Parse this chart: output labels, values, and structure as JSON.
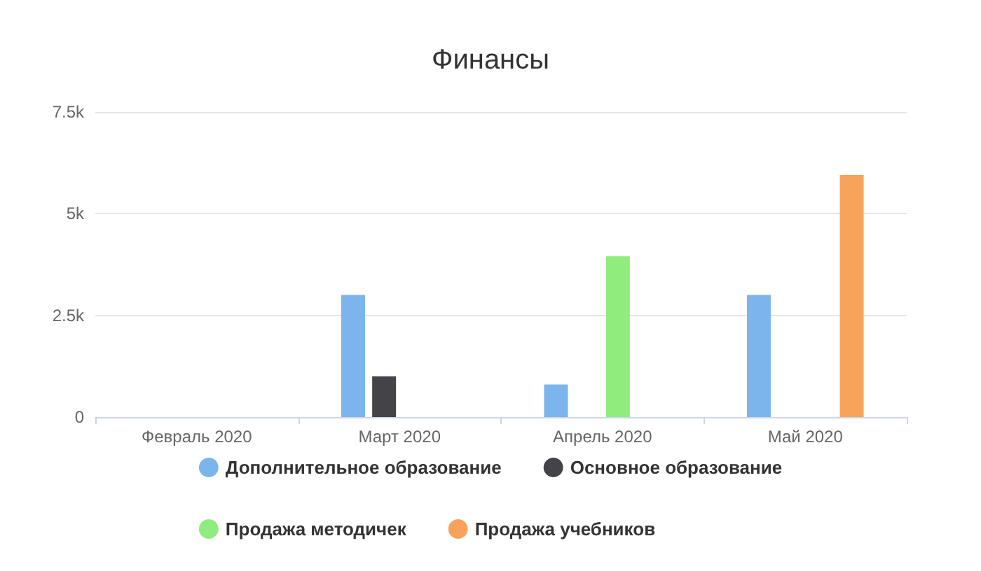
{
  "chart_data": {
    "type": "bar",
    "title": "Финансы",
    "categories": [
      "Февраль 2020",
      "Март 2020",
      "Апрель 2020",
      "Май 2020"
    ],
    "series": [
      {
        "name": "Дополнительное образование",
        "color": "#7cb5ec",
        "values": [
          null,
          3000,
          800,
          3000
        ]
      },
      {
        "name": "Основное образование",
        "color": "#434348",
        "values": [
          null,
          1000,
          null,
          null
        ]
      },
      {
        "name": "Продажа методичек",
        "color": "#90ed7d",
        "values": [
          null,
          null,
          3950,
          null
        ]
      },
      {
        "name": "Продажа учебников",
        "color": "#f7a35c",
        "values": [
          null,
          null,
          null,
          5950
        ]
      }
    ],
    "ylim": [
      0,
      7500
    ],
    "yticks": [
      0,
      {
        "value": 2500,
        "label": "2.5k"
      },
      {
        "value": 5000,
        "label": "5k"
      },
      {
        "value": 7500,
        "label": "7.5k"
      }
    ],
    "grid": "y",
    "legend": "bottom"
  }
}
